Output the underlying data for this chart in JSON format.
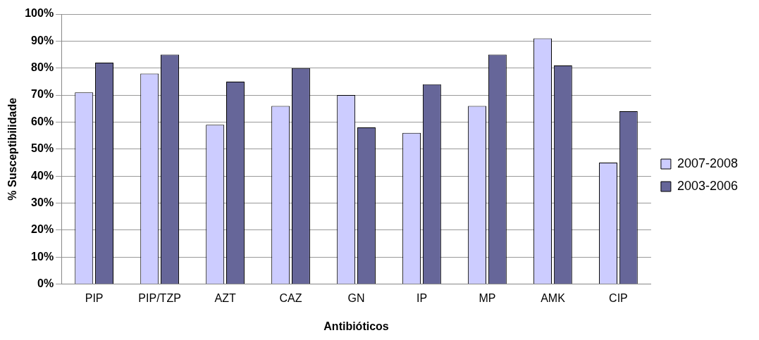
{
  "chart_data": {
    "type": "bar",
    "xlabel": "Antibióticos",
    "ylabel": "% Susceptibilidade",
    "categories": [
      "PIP",
      "PIP/TZP",
      "AZT",
      "CAZ",
      "GN",
      "IP",
      "MP",
      "AMK",
      "CIP"
    ],
    "series": [
      {
        "name": "2007-2008",
        "color": "#ccccff",
        "values": [
          71,
          78,
          59,
          66,
          70,
          56,
          66,
          91,
          45
        ]
      },
      {
        "name": "2003-2006",
        "color": "#666699",
        "values": [
          82,
          85,
          75,
          80,
          58,
          74,
          85,
          81,
          64
        ]
      }
    ],
    "ylim": [
      0,
      100
    ],
    "yticks": [
      {
        "value": 0,
        "label": "0%"
      },
      {
        "value": 10,
        "label": "10%"
      },
      {
        "value": 20,
        "label": "20%"
      },
      {
        "value": 30,
        "label": "30%"
      },
      {
        "value": 40,
        "label": "40%"
      },
      {
        "value": 50,
        "label": "50%"
      },
      {
        "value": 60,
        "label": "60%"
      },
      {
        "value": 70,
        "label": "70%"
      },
      {
        "value": 80,
        "label": "80%"
      },
      {
        "value": 90,
        "label": "90%"
      },
      {
        "value": 100,
        "label": "100%"
      }
    ],
    "grid": "y",
    "legend": "right"
  }
}
